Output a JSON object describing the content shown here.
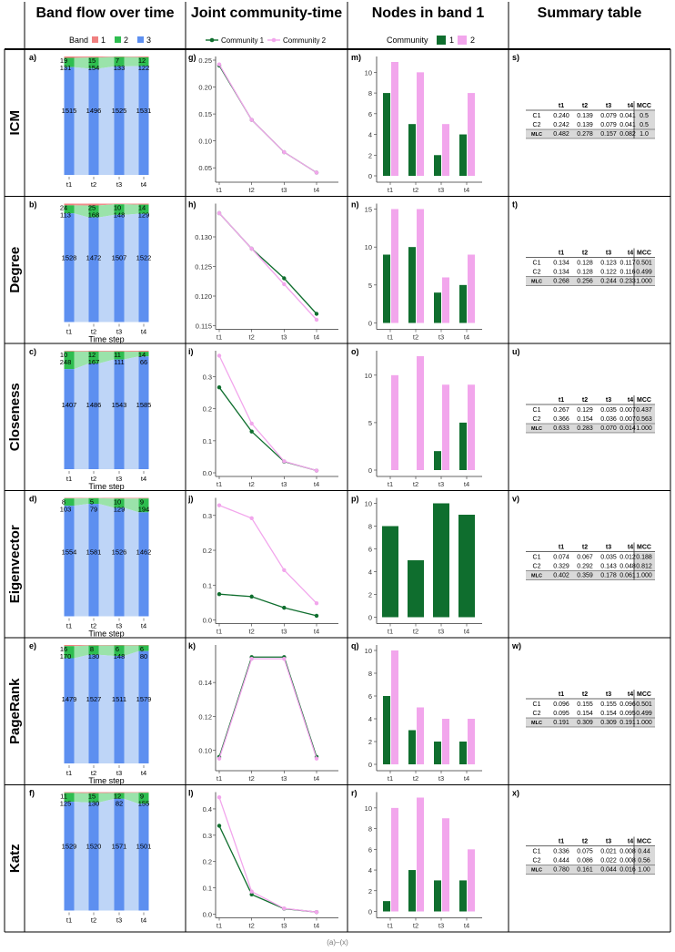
{
  "header": {
    "cols": [
      "Band flow over time",
      "Joint community-time",
      "Nodes in band 1",
      "Summary table"
    ]
  },
  "legends": {
    "band_title": "Band",
    "band_items": [
      "1",
      "2",
      "3"
    ],
    "joint_items": [
      "Community 1",
      "Community 2"
    ],
    "nodes_title": "Community",
    "nodes_items": [
      "1",
      "2"
    ]
  },
  "colors": {
    "band1": "#f08080",
    "band2": "#2ebd4f",
    "band3": "#5d8ff0",
    "band3_light": "#b7d0f6",
    "c1": "#0f6e2e",
    "c2": "#f2a6ec",
    "mcc_cell": "#d9d9d9"
  },
  "footer": "(a)–(x)",
  "chart_data": [
    {
      "row": "ICM",
      "type": "bar",
      "stacked": true,
      "panel": "a)",
      "categories": [
        "t1",
        "t2",
        "t3",
        "t4"
      ],
      "series": [
        {
          "name": "1",
          "values": [
            19,
            15,
            7,
            12
          ]
        },
        {
          "name": "2",
          "values": [
            131,
            154,
            133,
            122
          ]
        },
        {
          "name": "3",
          "values": [
            1515,
            1496,
            1525,
            1531
          ]
        }
      ],
      "xlabel": ""
    },
    {
      "row": "ICM",
      "type": "line",
      "panel": "g)",
      "x": [
        "t1",
        "t2",
        "t3",
        "t4"
      ],
      "series": [
        {
          "name": "Community 1",
          "values": [
            0.24,
            0.139,
            0.079,
            0.041
          ]
        },
        {
          "name": "Community 2",
          "values": [
            0.242,
            0.139,
            0.079,
            0.041
          ]
        }
      ],
      "ylim": [
        0.03,
        0.25
      ],
      "yticks": [
        "0.05",
        "0.10",
        "0.15",
        "0.20",
        "0.25"
      ]
    },
    {
      "row": "ICM",
      "type": "bar",
      "panel": "m)",
      "categories": [
        "t1",
        "t2",
        "t3",
        "t4"
      ],
      "series": [
        {
          "name": "1",
          "values": [
            8,
            5,
            2,
            4
          ]
        },
        {
          "name": "2",
          "values": [
            11,
            10,
            5,
            8
          ]
        }
      ],
      "ylim": [
        0,
        11
      ],
      "yticks": [
        0,
        2,
        4,
        6,
        8,
        10
      ]
    },
    {
      "row": "ICM",
      "type": "table",
      "panel": "s)",
      "columns": [
        "",
        "t1",
        "t2",
        "t3",
        "t4",
        "MCC"
      ],
      "rows": [
        [
          "C1",
          "0.240",
          "0.139",
          "0.079",
          "0.041",
          "0.5"
        ],
        [
          "C2",
          "0.242",
          "0.139",
          "0.079",
          "0.041",
          "0.5"
        ],
        [
          "MLC",
          "0.482",
          "0.278",
          "0.157",
          "0.082",
          "1.0"
        ]
      ]
    },
    {
      "row": "Degree",
      "type": "bar",
      "stacked": true,
      "panel": "b)",
      "categories": [
        "t1",
        "t2",
        "t3",
        "t4"
      ],
      "series": [
        {
          "name": "1",
          "values": [
            24,
            25,
            10,
            14
          ]
        },
        {
          "name": "2",
          "values": [
            113,
            168,
            148,
            129
          ]
        },
        {
          "name": "3",
          "values": [
            1528,
            1472,
            1507,
            1522
          ]
        }
      ],
      "xlabel": "Time step"
    },
    {
      "row": "Degree",
      "type": "line",
      "panel": "h)",
      "x": [
        "t1",
        "t2",
        "t3",
        "t4"
      ],
      "series": [
        {
          "name": "Community 1",
          "values": [
            0.134,
            0.128,
            0.123,
            0.117
          ]
        },
        {
          "name": "Community 2",
          "values": [
            0.134,
            0.128,
            0.122,
            0.116
          ]
        }
      ],
      "ylim": [
        0.115,
        0.135
      ],
      "yticks": [
        "0.115",
        "0.120",
        "0.125",
        "0.130"
      ]
    },
    {
      "row": "Degree",
      "type": "bar",
      "panel": "n)",
      "categories": [
        "t1",
        "t2",
        "t3",
        "t4"
      ],
      "series": [
        {
          "name": "1",
          "values": [
            9,
            10,
            4,
            5
          ]
        },
        {
          "name": "2",
          "values": [
            15,
            15,
            6,
            9
          ]
        }
      ],
      "ylim": [
        0,
        15
      ],
      "yticks": [
        0,
        5,
        10,
        15
      ]
    },
    {
      "row": "Degree",
      "type": "table",
      "panel": "t)",
      "columns": [
        "",
        "t1",
        "t2",
        "t3",
        "t4",
        "MCC"
      ],
      "rows": [
        [
          "C1",
          "0.134",
          "0.128",
          "0.123",
          "0.117",
          "0.501"
        ],
        [
          "C2",
          "0.134",
          "0.128",
          "0.122",
          "0.116",
          "0.499"
        ],
        [
          "MLC",
          "0.268",
          "0.256",
          "0.244",
          "0.233",
          "1.000"
        ]
      ]
    },
    {
      "row": "Closeness",
      "type": "bar",
      "stacked": true,
      "panel": "c)",
      "categories": [
        "t1",
        "t2",
        "t3",
        "t4"
      ],
      "series": [
        {
          "name": "1",
          "values": [
            10,
            12,
            11,
            14
          ]
        },
        {
          "name": "2",
          "values": [
            248,
            167,
            111,
            66
          ]
        },
        {
          "name": "3",
          "values": [
            1407,
            1486,
            1543,
            1585
          ]
        }
      ],
      "xlabel": "Time step"
    },
    {
      "row": "Closeness",
      "type": "line",
      "panel": "i)",
      "x": [
        "t1",
        "t2",
        "t3",
        "t4"
      ],
      "series": [
        {
          "name": "Community 1",
          "values": [
            0.267,
            0.129,
            0.035,
            0.007
          ]
        },
        {
          "name": "Community 2",
          "values": [
            0.366,
            0.154,
            0.036,
            0.007
          ]
        }
      ],
      "ylim": [
        0,
        0.37
      ],
      "yticks": [
        "0.0",
        "0.1",
        "0.2",
        "0.3"
      ]
    },
    {
      "row": "Closeness",
      "type": "bar",
      "panel": "o)",
      "categories": [
        "t1",
        "t2",
        "t3",
        "t4"
      ],
      "series": [
        {
          "name": "1",
          "values": [
            0,
            0,
            2,
            5
          ]
        },
        {
          "name": "2",
          "values": [
            10,
            12,
            9,
            9
          ]
        }
      ],
      "ylim": [
        0,
        12
      ],
      "yticks": [
        0,
        5,
        10
      ]
    },
    {
      "row": "Closeness",
      "type": "table",
      "panel": "u)",
      "columns": [
        "",
        "t1",
        "t2",
        "t3",
        "t4",
        "MCC"
      ],
      "rows": [
        [
          "C1",
          "0.267",
          "0.129",
          "0.035",
          "0.007",
          "0.437"
        ],
        [
          "C2",
          "0.366",
          "0.154",
          "0.036",
          "0.007",
          "0.563"
        ],
        [
          "MLC",
          "0.633",
          "0.283",
          "0.070",
          "0.014",
          "1.000"
        ]
      ]
    },
    {
      "row": "Eigenvector",
      "type": "bar",
      "stacked": true,
      "panel": "d)",
      "categories": [
        "t1",
        "t2",
        "t3",
        "t4"
      ],
      "series": [
        {
          "name": "1",
          "values": [
            8,
            5,
            10,
            9
          ]
        },
        {
          "name": "2",
          "values": [
            103,
            79,
            129,
            194
          ]
        },
        {
          "name": "3",
          "values": [
            1554,
            1581,
            1526,
            1462
          ]
        }
      ],
      "xlabel": "Time step"
    },
    {
      "row": "Eigenvector",
      "type": "line",
      "panel": "j)",
      "x": [
        "t1",
        "t2",
        "t3",
        "t4"
      ],
      "series": [
        {
          "name": "Community 1",
          "values": [
            0.074,
            0.067,
            0.035,
            0.012
          ]
        },
        {
          "name": "Community 2",
          "values": [
            0.329,
            0.292,
            0.143,
            0.048
          ]
        }
      ],
      "ylim": [
        0,
        0.34
      ],
      "yticks": [
        "0.0",
        "0.1",
        "0.2",
        "0.3"
      ]
    },
    {
      "row": "Eigenvector",
      "type": "bar",
      "panel": "p)",
      "categories": [
        "t1",
        "t2",
        "t3",
        "t4"
      ],
      "series": [
        {
          "name": "1",
          "values": [
            8,
            5,
            10,
            9
          ]
        },
        {
          "name": "2",
          "values": [
            0,
            0,
            0,
            0
          ]
        }
      ],
      "ylim": [
        0,
        10
      ],
      "yticks": [
        0,
        2,
        4,
        6,
        8,
        10
      ]
    },
    {
      "row": "Eigenvector",
      "type": "table",
      "panel": "v)",
      "columns": [
        "",
        "t1",
        "t2",
        "t3",
        "t4",
        "MCC"
      ],
      "rows": [
        [
          "C1",
          "0.074",
          "0.067",
          "0.035",
          "0.012",
          "0.188"
        ],
        [
          "C2",
          "0.329",
          "0.292",
          "0.143",
          "0.048",
          "0.812"
        ],
        [
          "MLC",
          "0.402",
          "0.359",
          "0.178",
          "0.061",
          "1.000"
        ]
      ]
    },
    {
      "row": "PageRank",
      "type": "bar",
      "stacked": true,
      "panel": "e)",
      "categories": [
        "t1",
        "t2",
        "t3",
        "t4"
      ],
      "series": [
        {
          "name": "1",
          "values": [
            16,
            8,
            6,
            6
          ]
        },
        {
          "name": "2",
          "values": [
            170,
            130,
            148,
            80
          ]
        },
        {
          "name": "3",
          "values": [
            1479,
            1527,
            1511,
            1579
          ]
        }
      ],
      "xlabel": "Time step"
    },
    {
      "row": "PageRank",
      "type": "line",
      "panel": "k)",
      "x": [
        "t1",
        "t2",
        "t3",
        "t4"
      ],
      "series": [
        {
          "name": "Community 1",
          "values": [
            0.096,
            0.155,
            0.155,
            0.096
          ]
        },
        {
          "name": "Community 2",
          "values": [
            0.095,
            0.154,
            0.154,
            0.095
          ]
        }
      ],
      "ylim": [
        0.09,
        0.16
      ],
      "yticks": [
        "0.10",
        "0.12",
        "0.14"
      ]
    },
    {
      "row": "PageRank",
      "type": "bar",
      "panel": "q)",
      "categories": [
        "t1",
        "t2",
        "t3",
        "t4"
      ],
      "series": [
        {
          "name": "1",
          "values": [
            6,
            3,
            2,
            2
          ]
        },
        {
          "name": "2",
          "values": [
            10,
            5,
            4,
            4
          ]
        }
      ],
      "ylim": [
        0,
        10
      ],
      "yticks": [
        0,
        2,
        4,
        6,
        8,
        10
      ]
    },
    {
      "row": "PageRank",
      "type": "table",
      "panel": "w)",
      "columns": [
        "",
        "t1",
        "t2",
        "t3",
        "t4",
        "MCC"
      ],
      "rows": [
        [
          "C1",
          "0.096",
          "0.155",
          "0.155",
          "0.096",
          "0.501"
        ],
        [
          "C2",
          "0.095",
          "0.154",
          "0.154",
          "0.095",
          "0.499"
        ],
        [
          "MLC",
          "0.191",
          "0.309",
          "0.309",
          "0.191",
          "1.000"
        ]
      ]
    },
    {
      "row": "Katz",
      "type": "bar",
      "stacked": true,
      "panel": "f)",
      "categories": [
        "t1",
        "t2",
        "t3",
        "t4"
      ],
      "series": [
        {
          "name": "1",
          "values": [
            11,
            15,
            12,
            9
          ]
        },
        {
          "name": "2",
          "values": [
            125,
            130,
            82,
            155
          ]
        },
        {
          "name": "3",
          "values": [
            1529,
            1520,
            1571,
            1501
          ]
        }
      ],
      "xlabel": ""
    },
    {
      "row": "Katz",
      "type": "line",
      "panel": "l)",
      "x": [
        "t1",
        "t2",
        "t3",
        "t4"
      ],
      "series": [
        {
          "name": "Community 1",
          "values": [
            0.336,
            0.075,
            0.021,
            0.008
          ]
        },
        {
          "name": "Community 2",
          "values": [
            0.444,
            0.086,
            0.022,
            0.008
          ]
        }
      ],
      "ylim": [
        0,
        0.45
      ],
      "yticks": [
        "0.0",
        "0.1",
        "0.2",
        "0.3",
        "0.4"
      ]
    },
    {
      "row": "Katz",
      "type": "bar",
      "panel": "r)",
      "categories": [
        "t1",
        "t2",
        "t3",
        "t4"
      ],
      "series": [
        {
          "name": "1",
          "values": [
            1,
            4,
            3,
            3
          ]
        },
        {
          "name": "2",
          "values": [
            10,
            11,
            9,
            6
          ]
        }
      ],
      "ylim": [
        0,
        11
      ],
      "yticks": [
        0,
        2,
        4,
        6,
        8,
        10
      ]
    },
    {
      "row": "Katz",
      "type": "table",
      "panel": "x)",
      "columns": [
        "",
        "t1",
        "t2",
        "t3",
        "t4",
        "MCC"
      ],
      "rows": [
        [
          "C1",
          "0.336",
          "0.075",
          "0.021",
          "0.008",
          "0.44"
        ],
        [
          "C2",
          "0.444",
          "0.086",
          "0.022",
          "0.008",
          "0.56"
        ],
        [
          "MLC",
          "0.780",
          "0.161",
          "0.044",
          "0.016",
          "1.00"
        ]
      ]
    }
  ]
}
